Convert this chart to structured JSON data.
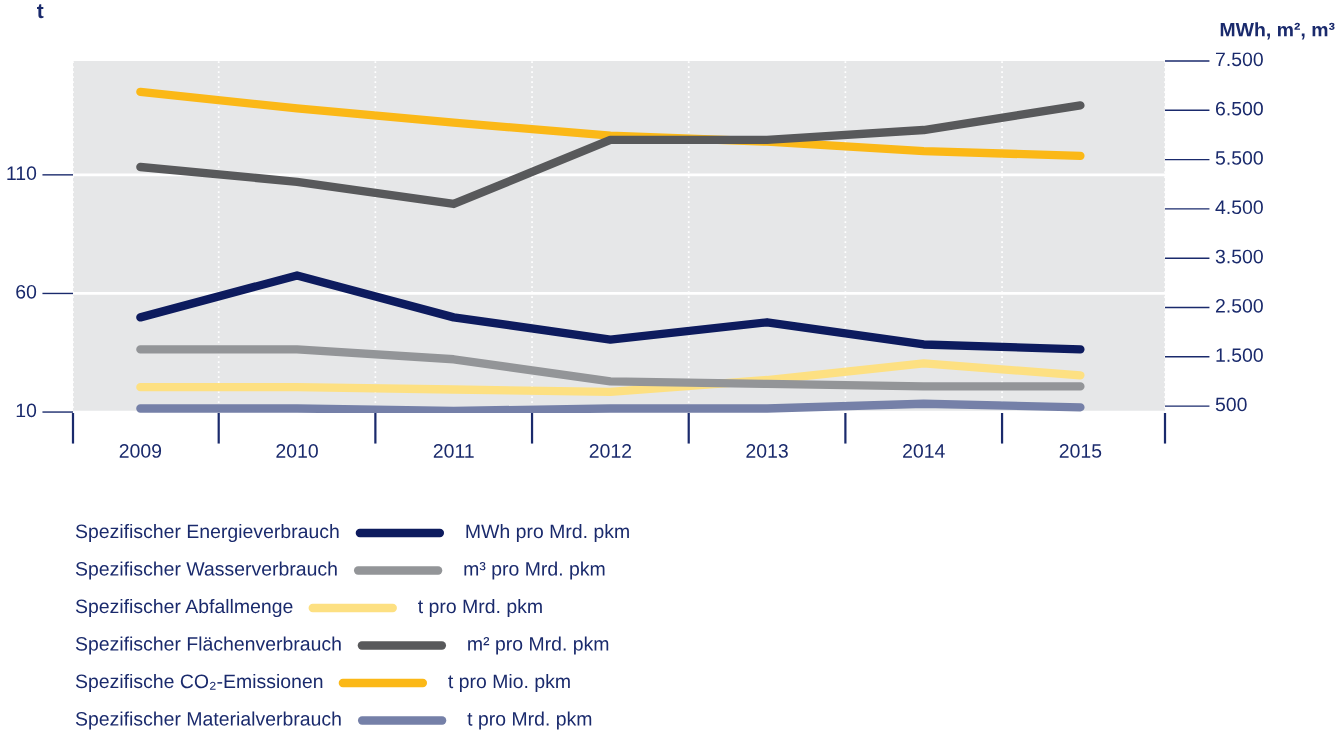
{
  "chart_data": {
    "type": "line",
    "ylabel": "t",
    "y2label": "MWh, m², m³",
    "categories": [
      "2009",
      "2010",
      "2011",
      "2012",
      "2013",
      "2014",
      "2015"
    ],
    "series": [
      {
        "name": "Spezifischer Energieverbrauch",
        "color": "#0d1b5e",
        "axis": "y2",
        "values": [
          2300,
          3150,
          2300,
          1850,
          2200,
          1750,
          1650
        ]
      },
      {
        "name": "Spezifischer Wasserverbrauch",
        "color": "#939598",
        "axis": "y2",
        "values": [
          1650,
          1650,
          1450,
          1000,
          950,
          900,
          900
        ]
      },
      {
        "name": "Spezifischer Abfallmenge",
        "color": "#fde082",
        "axis": "y",
        "values": [
          20.5,
          20.5,
          19.5,
          18.5,
          23.5,
          30.5,
          25.5
        ]
      },
      {
        "name": "Spezifischer Flächenverbrauch",
        "color": "#58595b",
        "axis": "y2",
        "values": [
          5350,
          5050,
          4600,
          5900,
          5900,
          6100,
          6600
        ]
      },
      {
        "name": "Spezifische CO₂-Emissionen",
        "color": "#fbb817",
        "axis": "y",
        "values": [
          145,
          138,
          132,
          126.5,
          124,
          120,
          118
        ]
      },
      {
        "name": "Spezifischer Materialverbrauch",
        "color": "#7580a8",
        "axis": "y",
        "values": [
          11.5,
          11.5,
          10.5,
          11.5,
          11.5,
          13.5,
          12
        ]
      }
    ],
    "annotations": [
      "MWh pro Mrd. pkm",
      "m³ pro Mrd. pkm",
      "t pro Mrd. pkm",
      "m² pro Mrd. pkm",
      "t pro Mio. pkm",
      "t pro Mrd. pkm"
    ],
    "ylim": [
      9.6,
      158
    ],
    "yticks": [
      10,
      60,
      110
    ],
    "y2lim": [
      360,
      7500
    ],
    "y2ticks": [
      {
        "value": 500,
        "label": "500"
      },
      {
        "value": 1500,
        "label": "1.500"
      },
      {
        "value": 2500,
        "label": "2.500"
      },
      {
        "value": 3500,
        "label": "3.500"
      },
      {
        "value": 4500,
        "label": "4.500"
      },
      {
        "value": 5500,
        "label": "5.500"
      },
      {
        "value": 6500,
        "label": "6.500"
      },
      {
        "value": 7500,
        "label": "7.500"
      }
    ],
    "grid": true,
    "legend": "bottom",
    "line_style": "solid",
    "marker": "none"
  }
}
